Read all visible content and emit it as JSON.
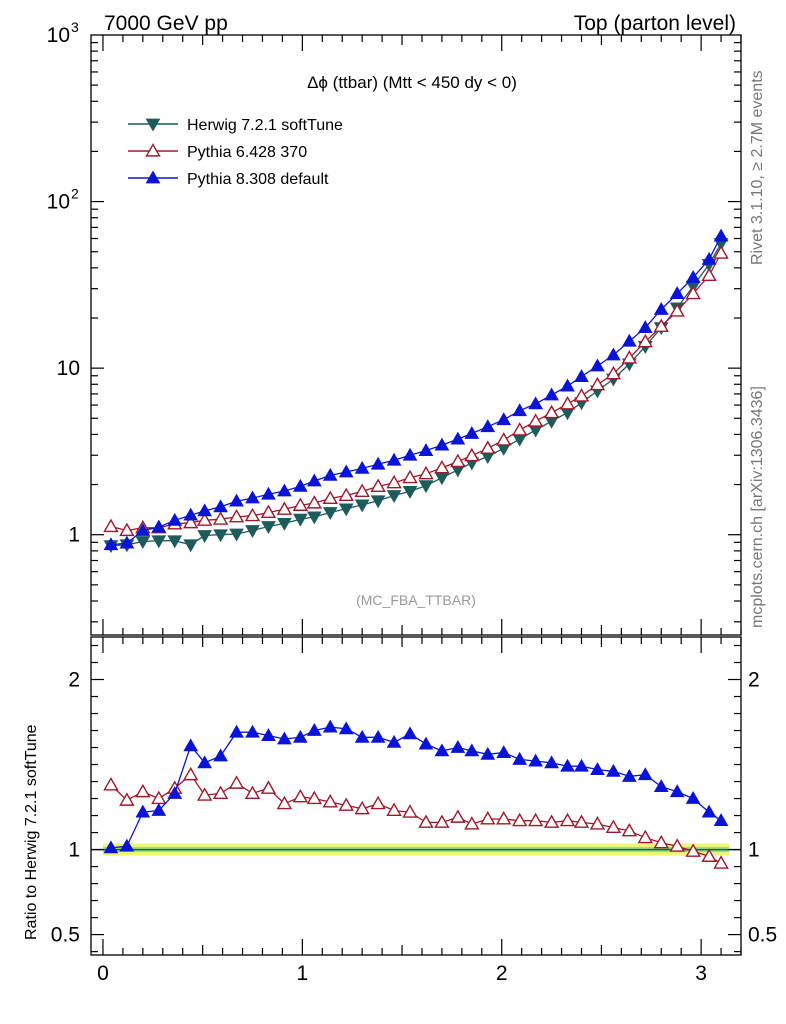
{
  "header": {
    "left": "7000 GeV pp",
    "right": "Top (parton level)"
  },
  "side_labels": {
    "top": "Rivet 3.1.10, ≥ 2.7M events",
    "bottom": "mcplots.cern.ch [arXiv:1306.3436]"
  },
  "watermark": "(MC_FBA_TTBAR)",
  "colors": {
    "herwig": "#1e5b5b",
    "pythia6": "#a0182a",
    "pythia8": "#0a14d8",
    "band_outer": "#f0f572",
    "band_inner": "#9fe07a"
  },
  "chart_data": [
    {
      "type": "line",
      "title": "Δϕ (ttbar) (Mtt < 450 dy < 0)",
      "yscale": "log",
      "xlim": [
        -0.06,
        3.2
      ],
      "ylim": [
        0.25,
        1000
      ],
      "yticks": [
        {
          "v": 1,
          "label": "1"
        },
        {
          "v": 10,
          "label": "10"
        },
        {
          "v": 100,
          "label": "10",
          "sup": "2"
        },
        {
          "v": 1000,
          "label": "10",
          "sup": "3"
        }
      ],
      "legend_position": "top-left",
      "x": [
        0.04,
        0.12,
        0.2,
        0.28,
        0.36,
        0.44,
        0.51,
        0.59,
        0.67,
        0.75,
        0.83,
        0.91,
        0.99,
        1.06,
        1.14,
        1.22,
        1.3,
        1.38,
        1.46,
        1.54,
        1.62,
        1.7,
        1.78,
        1.85,
        1.93,
        2.01,
        2.09,
        2.17,
        2.25,
        2.33,
        2.4,
        2.48,
        2.56,
        2.64,
        2.72,
        2.8,
        2.88,
        2.96,
        3.04,
        3.1
      ],
      "series": [
        {
          "name": "Herwig 7.2.1 softTune",
          "color": "#1e5b5b",
          "marker": "triangle-down-filled",
          "values": [
            0.86,
            0.87,
            0.91,
            0.92,
            0.92,
            0.87,
            0.99,
            1.0,
            1.01,
            1.06,
            1.12,
            1.17,
            1.24,
            1.28,
            1.36,
            1.43,
            1.51,
            1.6,
            1.72,
            1.82,
            1.97,
            2.2,
            2.45,
            2.7,
            2.95,
            3.3,
            3.75,
            4.25,
            4.8,
            5.4,
            6.2,
            7.3,
            8.6,
            10.6,
            13.5,
            17.5,
            23.0,
            31.0,
            42.0,
            56.0
          ]
        },
        {
          "name": "Pythia 6.428 370",
          "color": "#a0182a",
          "marker": "triangle-up-open",
          "values": [
            1.12,
            1.06,
            1.1,
            1.1,
            1.16,
            1.18,
            1.22,
            1.24,
            1.28,
            1.3,
            1.36,
            1.42,
            1.5,
            1.55,
            1.65,
            1.72,
            1.82,
            1.95,
            2.05,
            2.2,
            2.32,
            2.52,
            2.75,
            2.98,
            3.3,
            3.7,
            4.25,
            4.8,
            5.4,
            6.1,
            6.8,
            7.95,
            9.25,
            11.5,
            14.4,
            17.8,
            22.0,
            28.0,
            36.0,
            49.0
          ]
        },
        {
          "name": "Pythia 8.308 default",
          "color": "#0a14d8",
          "marker": "triangle-up-filled",
          "values": [
            0.87,
            0.89,
            1.06,
            1.11,
            1.22,
            1.31,
            1.39,
            1.47,
            1.59,
            1.66,
            1.75,
            1.83,
            1.95,
            2.1,
            2.27,
            2.38,
            2.5,
            2.65,
            2.8,
            3.0,
            3.2,
            3.45,
            3.75,
            4.05,
            4.45,
            4.9,
            5.55,
            6.1,
            6.9,
            7.8,
            8.9,
            10.3,
            12.0,
            14.5,
            17.5,
            22.5,
            28.0,
            35.0,
            45.0,
            62.0
          ]
        }
      ]
    },
    {
      "type": "line",
      "ylabel": "Ratio to Herwig 7.2.1 softTune",
      "xlim": [
        -0.06,
        3.2
      ],
      "ylim": [
        0.38,
        2.25
      ],
      "xticks": [
        {
          "v": 0,
          "label": "0"
        },
        {
          "v": 1,
          "label": "1"
        },
        {
          "v": 2,
          "label": "2"
        },
        {
          "v": 3,
          "label": "3"
        }
      ],
      "yticks": [
        {
          "v": 0.5,
          "label": "0.5"
        },
        {
          "v": 1,
          "label": "1"
        },
        {
          "v": 2,
          "label": "2"
        }
      ],
      "reference": 1.0,
      "x": [
        0.04,
        0.12,
        0.2,
        0.28,
        0.36,
        0.44,
        0.51,
        0.59,
        0.67,
        0.75,
        0.83,
        0.91,
        0.99,
        1.06,
        1.14,
        1.22,
        1.3,
        1.38,
        1.46,
        1.54,
        1.62,
        1.7,
        1.78,
        1.85,
        1.93,
        2.01,
        2.09,
        2.17,
        2.25,
        2.33,
        2.4,
        2.48,
        2.56,
        2.64,
        2.72,
        2.8,
        2.88,
        2.96,
        3.04,
        3.1
      ],
      "series": [
        {
          "name": "Pythia 6.428 370",
          "color": "#a0182a",
          "marker": "triangle-up-open",
          "values": [
            1.38,
            1.29,
            1.34,
            1.3,
            1.36,
            1.44,
            1.32,
            1.33,
            1.39,
            1.33,
            1.36,
            1.27,
            1.31,
            1.3,
            1.28,
            1.26,
            1.24,
            1.27,
            1.23,
            1.22,
            1.16,
            1.16,
            1.19,
            1.15,
            1.18,
            1.18,
            1.17,
            1.17,
            1.16,
            1.17,
            1.16,
            1.15,
            1.13,
            1.11,
            1.07,
            1.04,
            1.02,
            0.99,
            0.96,
            0.92
          ]
        },
        {
          "name": "Pythia 8.308 default",
          "color": "#0a14d8",
          "marker": "triangle-up-filled",
          "values": [
            1.01,
            1.02,
            1.22,
            1.23,
            1.33,
            1.61,
            1.51,
            1.55,
            1.69,
            1.69,
            1.67,
            1.65,
            1.66,
            1.7,
            1.72,
            1.71,
            1.66,
            1.66,
            1.63,
            1.68,
            1.62,
            1.58,
            1.6,
            1.58,
            1.56,
            1.57,
            1.53,
            1.52,
            1.51,
            1.49,
            1.49,
            1.47,
            1.46,
            1.43,
            1.44,
            1.37,
            1.34,
            1.3,
            1.22,
            1.17
          ]
        }
      ]
    }
  ]
}
